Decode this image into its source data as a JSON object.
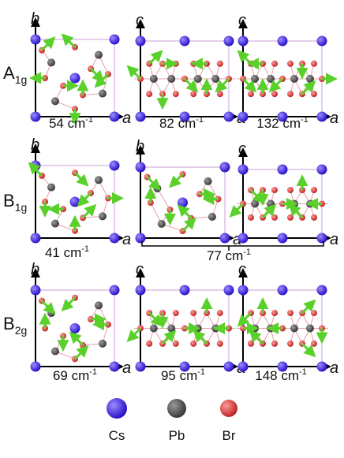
{
  "rows": [
    {
      "label": {
        "main": "A",
        "sub": "1g"
      },
      "panels": [
        {
          "y_axis": "b",
          "x_axis": "a"
        },
        {
          "y_axis": "c",
          "x_axis": "a"
        },
        {
          "y_axis": "c",
          "x_axis": "a"
        }
      ],
      "frequencies": [
        {
          "text": "54 cm",
          "sup": "-1"
        },
        {
          "text": "82 cm",
          "sup": "-1"
        },
        {
          "text": "132 cm",
          "sup": "-1"
        }
      ]
    },
    {
      "label": {
        "main": "B",
        "sub": "1g"
      },
      "panels": [
        {
          "y_axis": "b",
          "x_axis": "a"
        },
        {
          "y_axis": "b",
          "x_axis": "a"
        },
        {
          "y_axis": "c",
          "x_axis": "a"
        }
      ],
      "frequencies": [
        {
          "text": "41 cm",
          "sup": "-1"
        },
        {
          "text": "77 cm",
          "sup": "-1"
        }
      ]
    },
    {
      "label": {
        "main": "B",
        "sub": "2g"
      },
      "panels": [
        {
          "y_axis": "b",
          "x_axis": "a"
        },
        {
          "y_axis": "c",
          "x_axis": "a"
        },
        {
          "y_axis": "c",
          "x_axis": "a"
        }
      ],
      "frequencies": [
        {
          "text": "69 cm",
          "sup": "-1"
        },
        {
          "text": "95 cm",
          "sup": "-1"
        },
        {
          "text": "148 cm",
          "sup": "-1"
        }
      ]
    }
  ],
  "legend": [
    {
      "label": "Cs"
    },
    {
      "label": "Pb"
    },
    {
      "label": "Br"
    }
  ]
}
